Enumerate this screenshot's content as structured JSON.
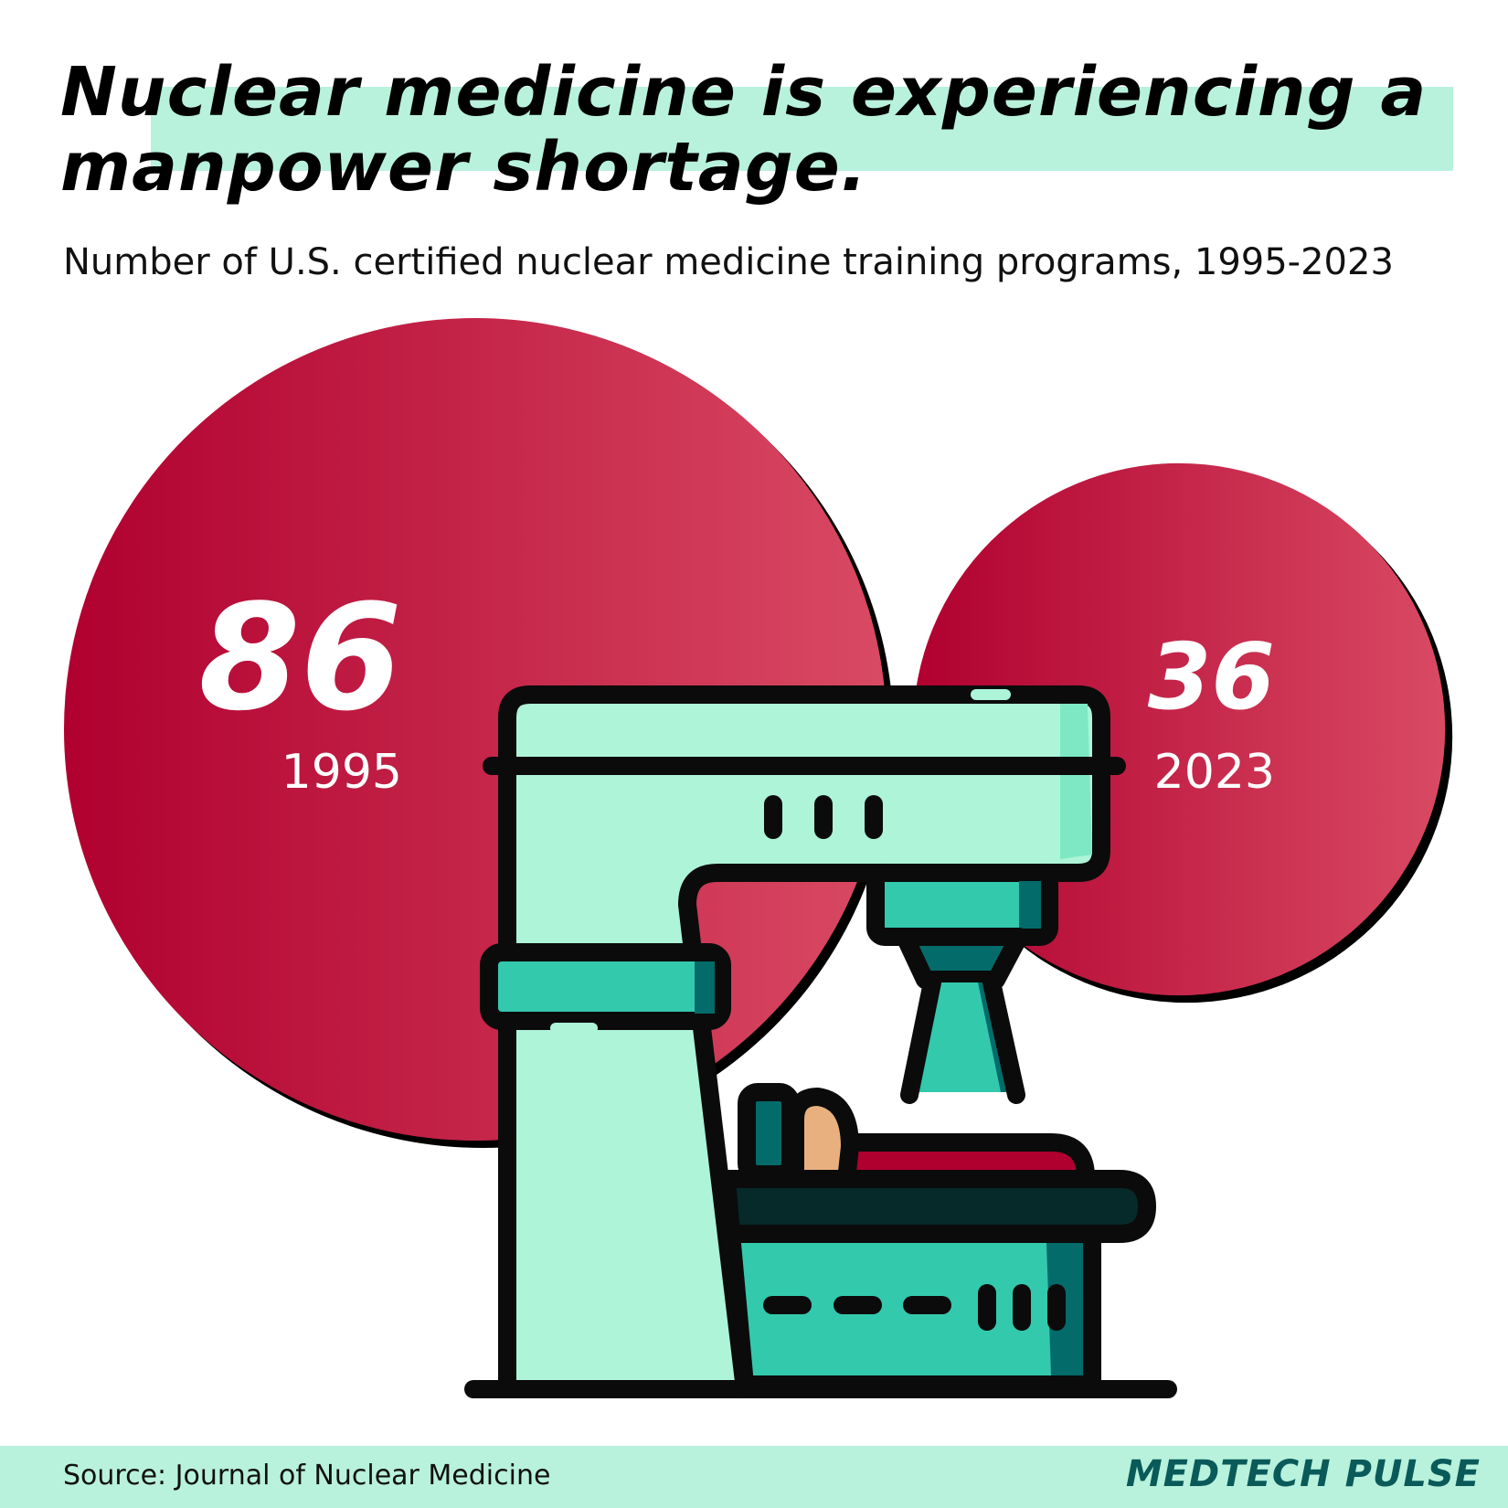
{
  "header": {
    "title": "Nuclear medicine is experiencing a manpower shortage.",
    "subtitle": "Number of U.S. certified nuclear medicine training programs, 1995-2023"
  },
  "chart_data": {
    "type": "bubble",
    "series": [
      {
        "values": [
          86,
          36
        ]
      }
    ],
    "categories": [
      "1995",
      "2023"
    ],
    "values": [
      86,
      36
    ],
    "value_labels": [
      "86",
      "36"
    ]
  },
  "colors": {
    "bubble_dark": "#b0002f",
    "bubble_light": "#d94a63",
    "mint": "#adf4d9",
    "teal": "#33c9ad",
    "dark_teal": "#046b6b",
    "accent_band": "#b8f2dc",
    "brand": "#0a5a5a"
  },
  "illustration": {
    "icon": "nuclear-medicine-scanner-icon"
  },
  "footer": {
    "source": "Source: Journal of Nuclear Medicine",
    "brand": "MEDTECH PULSE"
  }
}
